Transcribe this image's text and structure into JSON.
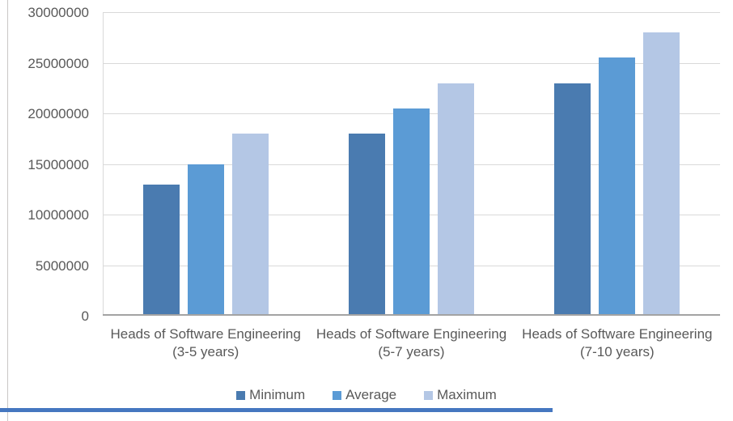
{
  "chart_data": {
    "type": "bar",
    "title": "",
    "xlabel": "",
    "ylabel": "",
    "categories": [
      "Heads of Software Engineering (3-5 years)",
      "Heads of Software Engineering (5-7 years)",
      "Heads of Software Engineering (7-10 years)"
    ],
    "series": [
      {
        "name": "Minimum",
        "color": "#4a7bb0",
        "values": [
          13000000,
          18000000,
          23000000
        ]
      },
      {
        "name": "Average",
        "color": "#5b9bd5",
        "values": [
          15000000,
          20500000,
          25500000
        ]
      },
      {
        "name": "Maximum",
        "color": "#b4c7e5",
        "values": [
          18000000,
          23000000,
          28000000
        ]
      }
    ],
    "ylim": [
      0,
      30000000
    ],
    "ytick_interval": 5000000,
    "ytick_labels": [
      "0",
      "5000000",
      "10000000",
      "15000000",
      "20000000",
      "25000000",
      "30000000"
    ],
    "grid": true,
    "legend_position": "bottom"
  },
  "colors": {
    "axis_text": "#595959",
    "gridline": "#d9d9d9",
    "x_axis_line": "#a3a3a3",
    "frame_line": "#c9c7c5",
    "bottom_strip": "#4577c0",
    "background": "#ffffff"
  }
}
